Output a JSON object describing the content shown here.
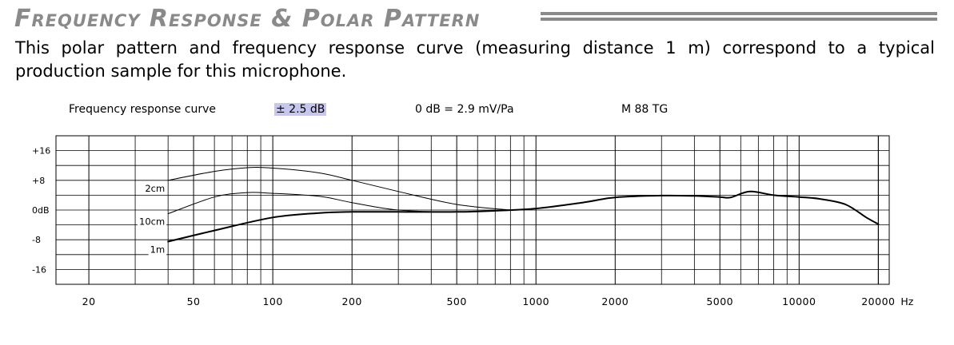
{
  "page": {
    "heading": "Frequency Response & Polar Pattern",
    "intro": "This polar pattern and frequency response curve (measuring distance 1 m) correspond to a typical production sample for this microphone."
  },
  "chart_header": {
    "title": "Frequency response curve",
    "tolerance": "± 2.5 dB",
    "reference": "0 dB = 2.9 mV/Pa",
    "model": "M 88 TG"
  },
  "chart_data": {
    "type": "line",
    "x_scale": "log",
    "xlim": [
      15,
      22000
    ],
    "ylim": [
      -20,
      20
    ],
    "x_ticks": [
      {
        "value": 20,
        "label": "20"
      },
      {
        "value": 50,
        "label": "50"
      },
      {
        "value": 100,
        "label": "100"
      },
      {
        "value": 200,
        "label": "200"
      },
      {
        "value": 500,
        "label": "500"
      },
      {
        "value": 1000,
        "label": "1000"
      },
      {
        "value": 2000,
        "label": "2000"
      },
      {
        "value": 5000,
        "label": "5000"
      },
      {
        "value": 10000,
        "label": "10000"
      },
      {
        "value": 20000,
        "label": "20000"
      }
    ],
    "x_unit": "Hz",
    "y_ticks": [
      {
        "value": 16,
        "label": "+16"
      },
      {
        "value": 8,
        "label": "+8"
      },
      {
        "value": 0,
        "label": "0dB"
      },
      {
        "value": -8,
        "label": "-8"
      },
      {
        "value": -16,
        "label": "-16"
      }
    ],
    "grid": true,
    "series": [
      {
        "name": "2cm",
        "x": [
          40,
          60,
          80,
          100,
          150,
          200,
          300,
          500,
          800
        ],
        "y": [
          8,
          10.4,
          11.4,
          11.3,
          10,
          8,
          5,
          1.5,
          0
        ]
      },
      {
        "name": "10cm",
        "x": [
          40,
          60,
          80,
          100,
          150,
          200,
          300,
          500,
          800
        ],
        "y": [
          -1,
          3.5,
          4.7,
          4.5,
          3.7,
          2,
          0,
          -0.5,
          0
        ]
      },
      {
        "name": "1m",
        "x": [
          40,
          60,
          100,
          150,
          200,
          300,
          500,
          700,
          1000,
          1500,
          2000,
          3000,
          4000,
          5000,
          5500,
          6500,
          8000,
          10000,
          12000,
          15000,
          18000,
          20000
        ],
        "y": [
          -8.5,
          -5.5,
          -2,
          -0.8,
          -0.5,
          -0.5,
          -0.5,
          -0.2,
          0.4,
          2,
          3.4,
          3.9,
          3.8,
          3.5,
          3.4,
          5,
          4,
          3.5,
          3,
          1.5,
          -2,
          -3.8
        ]
      }
    ]
  }
}
